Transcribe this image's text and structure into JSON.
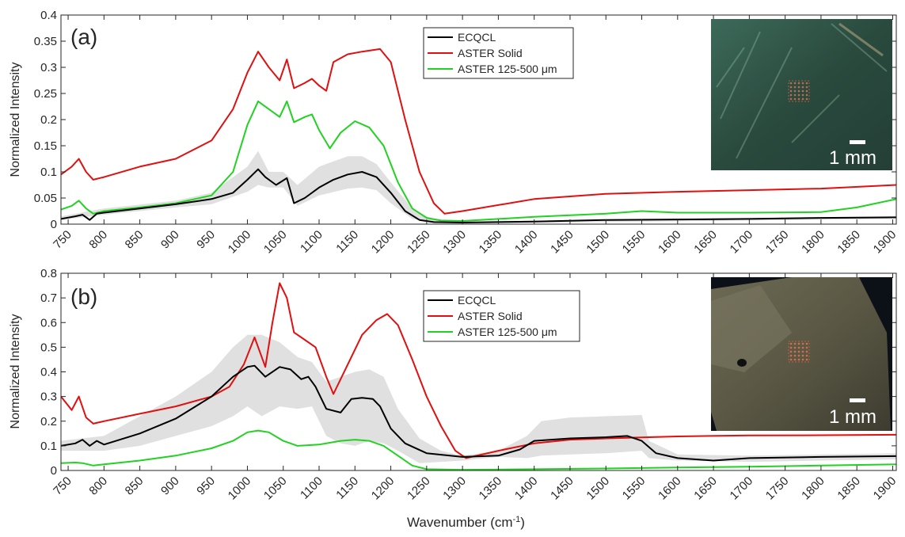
{
  "figure": {
    "xlabel": "Wavenumber (cm",
    "xlabel_sup": "-1",
    "xlabel_close": ")"
  },
  "chart_data": [
    {
      "type": "line",
      "panel_label": "(a)",
      "ylabel": "Normalized Intensity",
      "xlabel": "Wavenumber (cm-1)",
      "xlim": [
        740,
        1905
      ],
      "ylim": [
        0,
        0.4
      ],
      "xticks": [
        750,
        800,
        850,
        900,
        950,
        1000,
        1050,
        1100,
        1150,
        1200,
        1250,
        1300,
        1350,
        1400,
        1450,
        1500,
        1550,
        1600,
        1650,
        1700,
        1750,
        1800,
        1850,
        1900
      ],
      "yticks": [
        0,
        0.05,
        0.1,
        0.15,
        0.2,
        0.25,
        0.3,
        0.35,
        0.4
      ],
      "ytick_labels": [
        "0",
        "0.05",
        "0.1",
        "0.15",
        "0.2",
        "0.25",
        "0.3",
        "0.35",
        "0.4"
      ],
      "grid": false,
      "legend_position": "top-center",
      "inset": {
        "description_color": "#2f5245",
        "scale_label": "1 mm"
      },
      "series": [
        {
          "name": "ECQCL",
          "color": "#000000",
          "x": [
            740,
            760,
            770,
            780,
            790,
            800,
            850,
            900,
            950,
            980,
            1000,
            1015,
            1025,
            1040,
            1055,
            1065,
            1080,
            1100,
            1120,
            1140,
            1160,
            1180,
            1200,
            1220,
            1240,
            1260,
            1300,
            1400,
            1500,
            1600,
            1700,
            1800,
            1905
          ],
          "y": [
            0.01,
            0.015,
            0.018,
            0.008,
            0.02,
            0.022,
            0.03,
            0.038,
            0.048,
            0.06,
            0.085,
            0.105,
            0.09,
            0.075,
            0.088,
            0.04,
            0.05,
            0.07,
            0.085,
            0.095,
            0.1,
            0.09,
            0.06,
            0.025,
            0.008,
            0.004,
            0.003,
            0.005,
            0.008,
            0.009,
            0.01,
            0.012,
            0.013
          ]
        },
        {
          "name": "ASTER Solid",
          "color": "#e01010",
          "x": [
            740,
            755,
            765,
            775,
            785,
            800,
            850,
            900,
            950,
            980,
            1000,
            1015,
            1030,
            1045,
            1055,
            1065,
            1080,
            1090,
            1100,
            1110,
            1120,
            1140,
            1160,
            1185,
            1200,
            1220,
            1240,
            1260,
            1275,
            1300,
            1400,
            1500,
            1600,
            1700,
            1800,
            1905
          ],
          "y": [
            0.095,
            0.11,
            0.125,
            0.1,
            0.085,
            0.09,
            0.11,
            0.125,
            0.16,
            0.22,
            0.29,
            0.33,
            0.3,
            0.275,
            0.315,
            0.26,
            0.27,
            0.278,
            0.265,
            0.255,
            0.31,
            0.325,
            0.33,
            0.335,
            0.31,
            0.2,
            0.1,
            0.04,
            0.02,
            0.025,
            0.048,
            0.058,
            0.062,
            0.065,
            0.068,
            0.075
          ]
        },
        {
          "name": "ASTER 125-500 μm",
          "color": "#22d222",
          "x": [
            740,
            755,
            765,
            775,
            785,
            800,
            850,
            900,
            950,
            980,
            1000,
            1015,
            1030,
            1045,
            1055,
            1065,
            1080,
            1090,
            1100,
            1115,
            1130,
            1150,
            1170,
            1190,
            1210,
            1230,
            1250,
            1270,
            1300,
            1400,
            1500,
            1550,
            1600,
            1700,
            1800,
            1850,
            1905
          ],
          "y": [
            0.028,
            0.035,
            0.045,
            0.03,
            0.02,
            0.025,
            0.032,
            0.04,
            0.055,
            0.1,
            0.19,
            0.235,
            0.22,
            0.205,
            0.235,
            0.195,
            0.205,
            0.21,
            0.18,
            0.145,
            0.175,
            0.197,
            0.185,
            0.15,
            0.08,
            0.03,
            0.012,
            0.007,
            0.006,
            0.014,
            0.02,
            0.025,
            0.022,
            0.022,
            0.023,
            0.032,
            0.048
          ]
        }
      ],
      "shaded_band": {
        "x": [
          740,
          800,
          900,
          950,
          1000,
          1015,
          1030,
          1050,
          1070,
          1100,
          1140,
          1160,
          1180,
          1200,
          1230,
          1260,
          1300,
          1905
        ],
        "upper": [
          0.015,
          0.03,
          0.045,
          0.06,
          0.11,
          0.14,
          0.1,
          0.1,
          0.075,
          0.11,
          0.13,
          0.13,
          0.115,
          0.08,
          0.03,
          0.008,
          0.005,
          0.015
        ],
        "lower": [
          0.008,
          0.018,
          0.032,
          0.038,
          0.062,
          0.075,
          0.07,
          0.07,
          0.035,
          0.055,
          0.068,
          0.07,
          0.065,
          0.04,
          0.01,
          0.002,
          0.001,
          0.01
        ]
      }
    },
    {
      "type": "line",
      "panel_label": "(b)",
      "ylabel": "Normalized Intensity",
      "xlabel": "Wavenumber (cm-1)",
      "xlim": [
        740,
        1905
      ],
      "ylim": [
        0,
        0.8
      ],
      "xticks": [
        750,
        800,
        850,
        900,
        950,
        1000,
        1050,
        1100,
        1150,
        1200,
        1250,
        1300,
        1350,
        1400,
        1450,
        1500,
        1550,
        1600,
        1650,
        1700,
        1750,
        1800,
        1850,
        1900
      ],
      "yticks": [
        0,
        0.1,
        0.2,
        0.3,
        0.4,
        0.5,
        0.6,
        0.7,
        0.8
      ],
      "ytick_labels": [
        "0",
        "0.1",
        "0.2",
        "0.3",
        "0.4",
        "0.5",
        "0.6",
        "0.7",
        "0.8"
      ],
      "grid": false,
      "legend_position": "top-center",
      "inset": {
        "description_color": "#5d5a44",
        "scale_label": "1 mm"
      },
      "series": [
        {
          "name": "ECQCL",
          "color": "#000000",
          "x": [
            740,
            760,
            770,
            780,
            790,
            800,
            850,
            900,
            950,
            980,
            1000,
            1010,
            1025,
            1045,
            1060,
            1075,
            1085,
            1095,
            1110,
            1130,
            1145,
            1160,
            1175,
            1185,
            1200,
            1220,
            1250,
            1300,
            1350,
            1380,
            1400,
            1450,
            1500,
            1530,
            1550,
            1570,
            1600,
            1650,
            1700,
            1800,
            1905
          ],
          "y": [
            0.1,
            0.11,
            0.125,
            0.1,
            0.12,
            0.105,
            0.15,
            0.21,
            0.3,
            0.38,
            0.42,
            0.425,
            0.38,
            0.42,
            0.41,
            0.37,
            0.38,
            0.34,
            0.25,
            0.235,
            0.29,
            0.295,
            0.29,
            0.26,
            0.17,
            0.11,
            0.07,
            0.055,
            0.06,
            0.085,
            0.12,
            0.13,
            0.135,
            0.14,
            0.12,
            0.07,
            0.05,
            0.04,
            0.05,
            0.055,
            0.058
          ]
        },
        {
          "name": "ASTER Solid",
          "color": "#e01010",
          "x": [
            740,
            755,
            765,
            775,
            785,
            800,
            850,
            900,
            950,
            975,
            995,
            1010,
            1025,
            1035,
            1045,
            1055,
            1065,
            1080,
            1095,
            1110,
            1120,
            1140,
            1160,
            1180,
            1195,
            1210,
            1230,
            1250,
            1270,
            1290,
            1305,
            1350,
            1400,
            1450,
            1500,
            1600,
            1700,
            1800,
            1905
          ],
          "y": [
            0.3,
            0.245,
            0.3,
            0.215,
            0.19,
            0.2,
            0.23,
            0.26,
            0.3,
            0.34,
            0.43,
            0.54,
            0.42,
            0.6,
            0.76,
            0.7,
            0.56,
            0.53,
            0.5,
            0.38,
            0.31,
            0.43,
            0.55,
            0.61,
            0.635,
            0.59,
            0.45,
            0.3,
            0.18,
            0.08,
            0.05,
            0.08,
            0.11,
            0.125,
            0.13,
            0.138,
            0.142,
            0.143,
            0.145
          ]
        },
        {
          "name": "ASTER 125-500 μm",
          "color": "#22d222",
          "x": [
            740,
            760,
            770,
            785,
            800,
            850,
            900,
            950,
            980,
            1000,
            1015,
            1030,
            1050,
            1070,
            1100,
            1130,
            1150,
            1170,
            1190,
            1210,
            1230,
            1250,
            1300,
            1400,
            1500,
            1600,
            1700,
            1800,
            1905
          ],
          "y": [
            0.03,
            0.032,
            0.03,
            0.02,
            0.025,
            0.04,
            0.06,
            0.09,
            0.12,
            0.155,
            0.162,
            0.155,
            0.12,
            0.1,
            0.105,
            0.12,
            0.125,
            0.12,
            0.1,
            0.06,
            0.02,
            0.005,
            0.003,
            0.005,
            0.008,
            0.012,
            0.015,
            0.02,
            0.025
          ]
        }
      ],
      "shaded_band": {
        "x": [
          740,
          800,
          850,
          900,
          950,
          980,
          1000,
          1020,
          1045,
          1070,
          1090,
          1110,
          1130,
          1150,
          1170,
          1190,
          1210,
          1240,
          1270,
          1300,
          1350,
          1390,
          1410,
          1450,
          1500,
          1550,
          1560,
          1600,
          1700,
          1800,
          1905
        ],
        "upper": [
          0.12,
          0.14,
          0.22,
          0.3,
          0.4,
          0.5,
          0.55,
          0.55,
          0.52,
          0.46,
          0.44,
          0.36,
          0.38,
          0.4,
          0.41,
          0.38,
          0.25,
          0.13,
          0.08,
          0.06,
          0.08,
          0.14,
          0.2,
          0.215,
          0.22,
          0.225,
          0.12,
          0.065,
          0.06,
          0.065,
          0.07
        ],
        "lower": [
          0.08,
          0.08,
          0.1,
          0.14,
          0.18,
          0.22,
          0.26,
          0.22,
          0.26,
          0.25,
          0.26,
          0.14,
          0.11,
          0.1,
          0.12,
          0.11,
          0.08,
          0.03,
          0.035,
          0.04,
          0.055,
          0.05,
          0.06,
          0.065,
          0.07,
          0.08,
          0.05,
          0.04,
          0.035,
          0.04,
          0.045
        ]
      }
    }
  ]
}
